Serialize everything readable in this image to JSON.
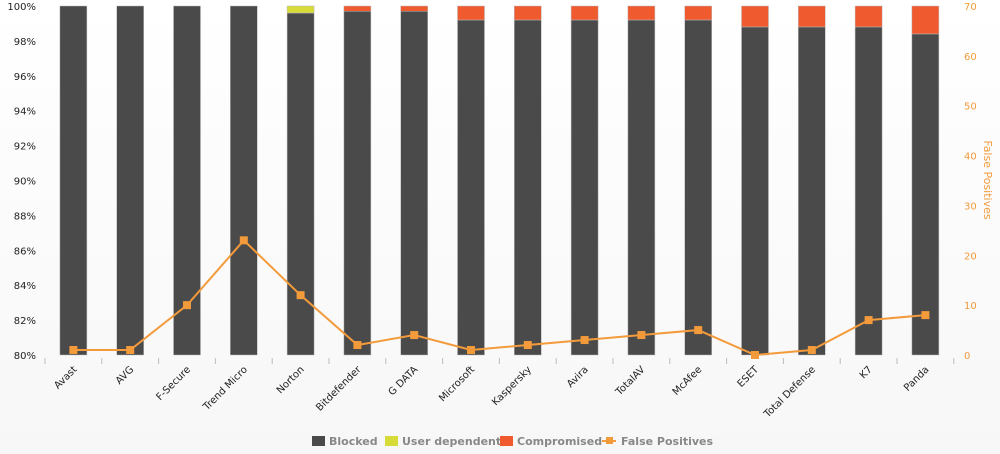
{
  "colors": {
    "blocked": "#4a4a4a",
    "user_dependent": "#d7db38",
    "compromised": "#ef5a2f",
    "false_positives": "#f39a3b",
    "left_axis_text": "#222222",
    "right_axis_text": "#f39a3b"
  },
  "legend": {
    "items": [
      {
        "label": "Blocked",
        "key": "blocked"
      },
      {
        "label": "User dependent",
        "key": "user_dependent"
      },
      {
        "label": "Compromised",
        "key": "compromised"
      },
      {
        "label": "False Positives",
        "key": "false_positives"
      }
    ]
  },
  "chart_data": {
    "type": "bar",
    "stacked": true,
    "title": "",
    "xlabel": "",
    "ylabel": "",
    "y2label": "False Positives",
    "ylim": [
      80,
      100
    ],
    "y2lim": [
      0,
      70
    ],
    "yticks": [
      "80%",
      "82%",
      "84%",
      "86%",
      "88%",
      "90%",
      "92%",
      "94%",
      "96%",
      "98%",
      "100%"
    ],
    "y2ticks": [
      "0",
      "10",
      "20",
      "30",
      "40",
      "50",
      "60",
      "70"
    ],
    "grid": false,
    "legend_position": "bottom",
    "categories": [
      "Avast",
      "AVG",
      "F-Secure",
      "Trend Micro",
      "Norton",
      "Bitdefender",
      "G DATA",
      "Microsoft",
      "Kaspersky",
      "Avira",
      "TotalAV",
      "McAfee",
      "ESET",
      "Total Defense",
      "K7",
      "Panda"
    ],
    "series": [
      {
        "name": "Blocked",
        "type": "bar",
        "axis": "left",
        "values": [
          100,
          100,
          100,
          100,
          99.6,
          99.7,
          99.7,
          99.2,
          99.2,
          99.2,
          99.2,
          99.2,
          98.8,
          98.8,
          98.8,
          98.4
        ]
      },
      {
        "name": "User dependent",
        "type": "bar",
        "axis": "left",
        "values": [
          0,
          0,
          0,
          0,
          0.4,
          0,
          0,
          0,
          0,
          0,
          0,
          0,
          0,
          0,
          0,
          0
        ]
      },
      {
        "name": "Compromised",
        "type": "bar",
        "axis": "left",
        "values": [
          0,
          0,
          0,
          0,
          0,
          0.3,
          0.3,
          0.8,
          0.8,
          0.8,
          0.8,
          0.8,
          1.2,
          1.2,
          1.2,
          1.6
        ]
      },
      {
        "name": "False Positives",
        "type": "line",
        "axis": "right",
        "values": [
          1,
          1,
          10,
          23,
          12,
          2,
          4,
          1,
          2,
          3,
          4,
          5,
          0,
          1,
          7,
          8
        ]
      }
    ]
  }
}
